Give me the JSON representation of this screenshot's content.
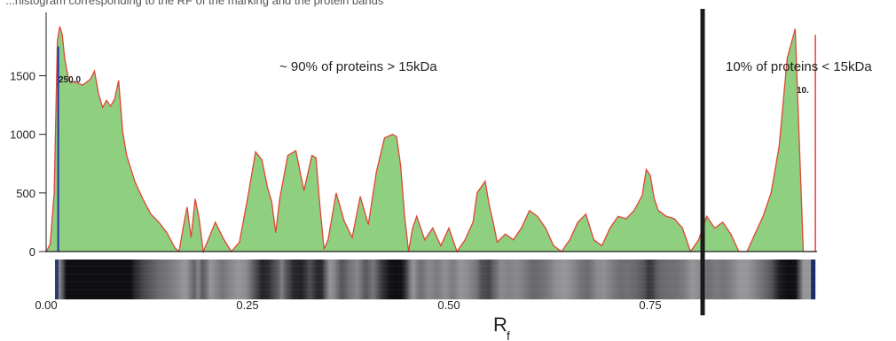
{
  "caption_fragment": "...histogram corresponding to the RF of the marking and the protein bands",
  "chart_data": {
    "type": "area",
    "title": "",
    "xlabel": "R",
    "xlabel_sub": "f",
    "ylabel": "",
    "xlim": [
      0,
      0.955
    ],
    "ylim": [
      0,
      1950
    ],
    "x_ticks": [
      "0.00",
      "0.25",
      "0.50",
      "0.75"
    ],
    "x_tick_values": [
      0,
      0.25,
      0.5,
      0.75
    ],
    "y_ticks": [
      "0",
      "500",
      "1000",
      "1500"
    ],
    "y_tick_values": [
      0,
      500,
      1000,
      1500
    ],
    "annotations": [
      {
        "text": "~ 90% of proteins > 15kDa"
      },
      {
        "text": "10% of proteins < 15kDa"
      },
      {
        "text": "250.0"
      },
      {
        "text": "10."
      }
    ],
    "divider_x": 0.815,
    "marker_x": 0.015,
    "series": [
      {
        "x": [
          0.0,
          0.005,
          0.01,
          0.014,
          0.017,
          0.02,
          0.023,
          0.027,
          0.03,
          0.035,
          0.045,
          0.055,
          0.06,
          0.065,
          0.07,
          0.075,
          0.08,
          0.085,
          0.09,
          0.095,
          0.1,
          0.11,
          0.12,
          0.13,
          0.14,
          0.15,
          0.16,
          0.165,
          0.17,
          0.175,
          0.18,
          0.185,
          0.19,
          0.195,
          0.2,
          0.21,
          0.22,
          0.23,
          0.24,
          0.25,
          0.26,
          0.268,
          0.275,
          0.28,
          0.285,
          0.29,
          0.3,
          0.31,
          0.32,
          0.33,
          0.335,
          0.34,
          0.345,
          0.35,
          0.36,
          0.37,
          0.38,
          0.39,
          0.4,
          0.41,
          0.42,
          0.43,
          0.435,
          0.44,
          0.445,
          0.45,
          0.455,
          0.46,
          0.47,
          0.48,
          0.49,
          0.5,
          0.51,
          0.52,
          0.53,
          0.535,
          0.545,
          0.55,
          0.555,
          0.56,
          0.57,
          0.58,
          0.59,
          0.6,
          0.61,
          0.62,
          0.63,
          0.64,
          0.65,
          0.66,
          0.67,
          0.68,
          0.69,
          0.7,
          0.71,
          0.72,
          0.73,
          0.74,
          0.745,
          0.75,
          0.755,
          0.76,
          0.77,
          0.78,
          0.79,
          0.8,
          0.81,
          0.82,
          0.83,
          0.84,
          0.85,
          0.86,
          0.87,
          0.88,
          0.89,
          0.9,
          0.91,
          0.92,
          0.93,
          0.94,
          0.945,
          0.95,
          0.955
        ],
        "values": [
          0,
          60,
          500,
          1800,
          1920,
          1850,
          1650,
          1500,
          1440,
          1450,
          1420,
          1470,
          1540,
          1350,
          1230,
          1290,
          1240,
          1300,
          1460,
          1020,
          820,
          600,
          450,
          320,
          250,
          160,
          30,
          0,
          200,
          380,
          120,
          450,
          280,
          0,
          80,
          250,
          110,
          0,
          80,
          450,
          850,
          780,
          540,
          430,
          160,
          450,
          820,
          860,
          520,
          820,
          800,
          380,
          20,
          100,
          500,
          260,
          120,
          470,
          230,
          680,
          970,
          1000,
          980,
          740,
          300,
          0,
          200,
          300,
          100,
          200,
          50,
          200,
          0,
          100,
          250,
          500,
          600,
          400,
          250,
          80,
          150,
          100,
          200,
          350,
          300,
          200,
          50,
          0,
          100,
          250,
          320,
          100,
          50,
          200,
          300,
          280,
          350,
          480,
          700,
          650,
          450,
          350,
          300,
          280,
          200,
          0,
          100,
          300,
          200,
          250,
          150,
          0,
          0,
          150,
          300,
          500,
          900,
          1650,
          1900,
          0,
          0,
          0,
          0
        ]
      }
    ]
  },
  "colors": {
    "fill": "#8fcf80",
    "outline": "#e04535",
    "divider": "#1a1a1a",
    "marker": "#2233aa",
    "axis": "#222222"
  }
}
